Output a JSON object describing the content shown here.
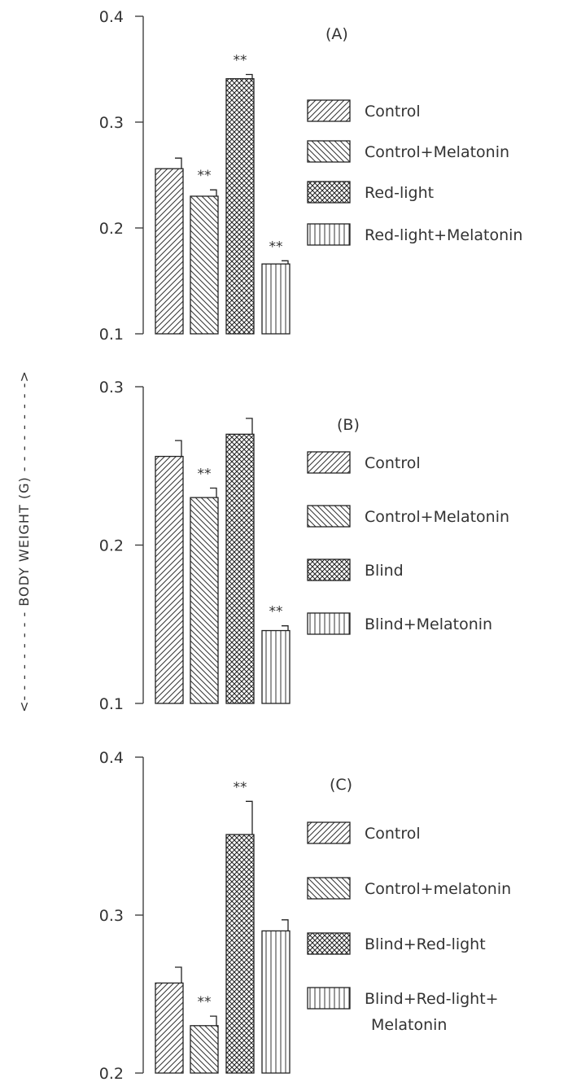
{
  "y_axis_label": "<- - - - - - - - -  BODY WEIGHT (G)  - - - - - - - - ->",
  "chart_data": [
    {
      "type": "bar",
      "panel_label": "(A)",
      "categories": [
        "Control",
        "Control+Melatonin",
        "Red-light",
        "Red-light+Melatonin"
      ],
      "values": [
        0.256,
        0.23,
        0.341,
        0.166
      ],
      "errors": [
        0.01,
        0.006,
        0.004,
        0.003
      ],
      "significance": [
        "",
        "**",
        "**",
        "**"
      ],
      "ylim": [
        0.1,
        0.4
      ],
      "yticks": [
        0.1,
        0.2,
        0.3,
        0.4
      ],
      "ytick_labels": [
        "0.1",
        "0.2",
        "0.3",
        "0.4"
      ],
      "patterns": [
        "hatch-fwd",
        "hatch-back",
        "cross",
        "vertical"
      ],
      "legend": [
        "Control",
        "Control+Melatonin",
        "Red-light",
        "Red-light+Melatonin"
      ],
      "legend_position": "right"
    },
    {
      "type": "bar",
      "panel_label": "(B)",
      "categories": [
        "Control",
        "Control+Melatonin",
        "Blind",
        "Blind+Melatonin"
      ],
      "values": [
        0.256,
        0.23,
        0.27,
        0.146
      ],
      "errors": [
        0.01,
        0.006,
        0.01,
        0.003
      ],
      "significance": [
        "",
        "**",
        "",
        "**"
      ],
      "ylim": [
        0.1,
        0.3
      ],
      "yticks": [
        0.1,
        0.2,
        0.3
      ],
      "ytick_labels": [
        "0.1",
        "0.2",
        "0.3"
      ],
      "patterns": [
        "hatch-fwd",
        "hatch-back",
        "cross",
        "vertical"
      ],
      "legend": [
        "Control",
        "Control+Melatonin",
        "Blind",
        "Blind+Melatonin"
      ],
      "legend_position": "right"
    },
    {
      "type": "bar",
      "panel_label": "(C)",
      "categories": [
        "Control",
        "Control+melatonin",
        "Blind+Red-light",
        "Blind+Red-light+Melatonin"
      ],
      "values": [
        0.257,
        0.23,
        0.351,
        0.29
      ],
      "errors": [
        0.01,
        0.006,
        0.021,
        0.007
      ],
      "significance": [
        "",
        "**",
        "**",
        ""
      ],
      "ylim": [
        0.2,
        0.4
      ],
      "yticks": [
        0.2,
        0.3,
        0.4
      ],
      "ytick_labels": [
        "0.2",
        "0.3",
        "0.4"
      ],
      "patterns": [
        "hatch-fwd",
        "hatch-back",
        "cross",
        "vertical"
      ],
      "legend": [
        "Control",
        "Control+melatonin",
        "Blind+Red-light",
        "Blind+Red-light+\nMelatonin"
      ],
      "legend_position": "right"
    }
  ]
}
